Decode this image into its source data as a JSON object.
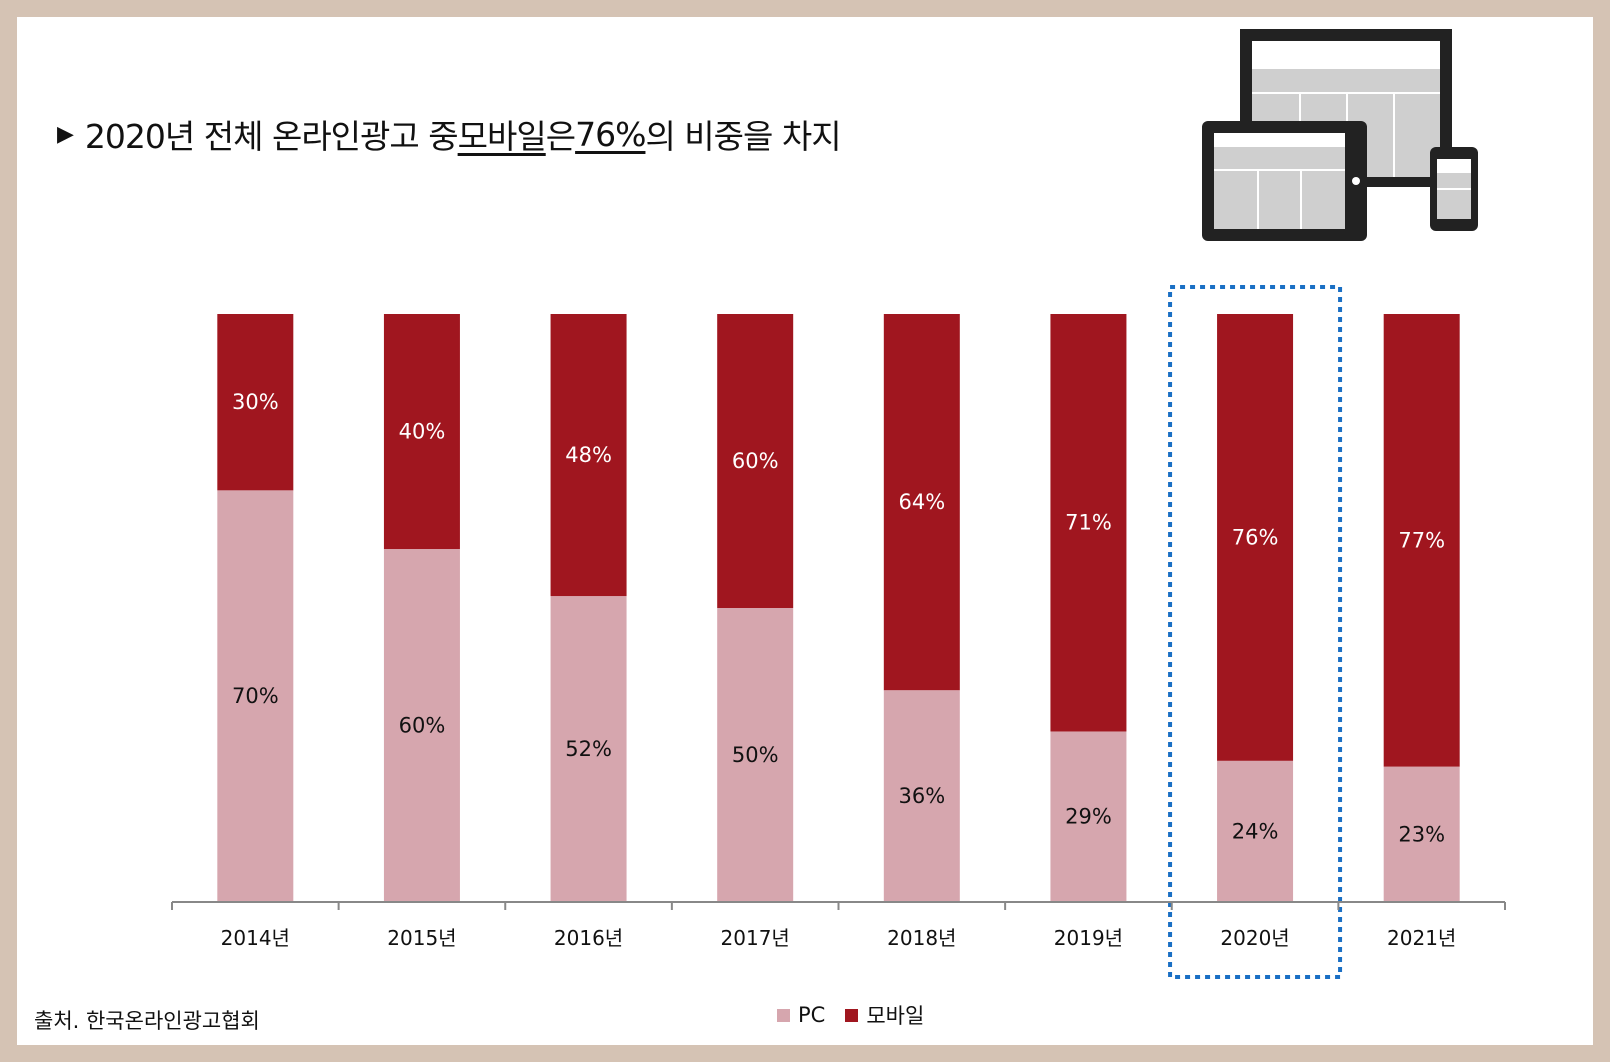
{
  "headline": {
    "prefix": "2020년 전체 온라인광고 중 ",
    "highlight1": "모바일",
    "middle": "은 ",
    "highlight2": "76%",
    "suffix": "의 비중을 차지"
  },
  "source": "출처. 한국온라인광고협회",
  "colors": {
    "pc": "#d6a6ae",
    "mobile": "#a0161f",
    "highlight_box": "#1a6fc4",
    "axis": "#888888"
  },
  "chart_data": {
    "type": "bar",
    "stacked": true,
    "categories": [
      "2014년",
      "2015년",
      "2016년",
      "2017년",
      "2018년",
      "2019년",
      "2020년",
      "2021년"
    ],
    "series": [
      {
        "name": "PC",
        "values": [
          70,
          60,
          52,
          50,
          36,
          29,
          24,
          23
        ],
        "labels": [
          "70%",
          "60%",
          "52%",
          "50%",
          "36%",
          "29%",
          "24%",
          "23%"
        ]
      },
      {
        "name": "모바일",
        "values": [
          30,
          40,
          48,
          60,
          64,
          71,
          76,
          77
        ],
        "labels": [
          "30%",
          "40%",
          "48%",
          "60%",
          "64%",
          "71%",
          "76%",
          "77%"
        ]
      }
    ],
    "highlight_category": "2020년",
    "legend_position": "bottom"
  }
}
